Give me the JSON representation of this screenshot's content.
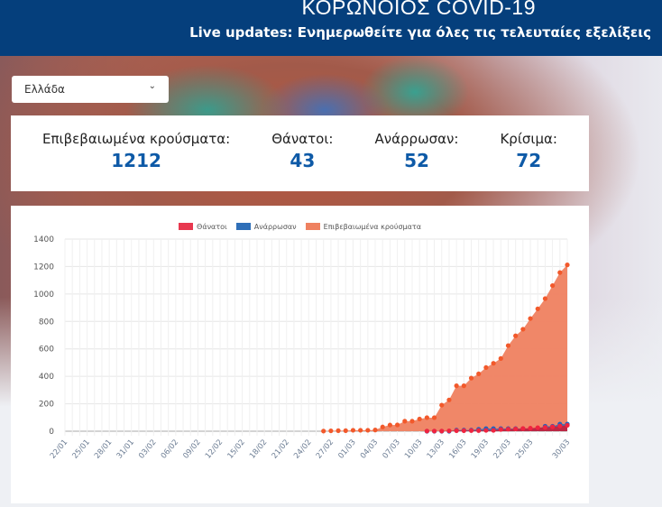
{
  "header": {
    "title": "ΚΟΡΩΝΟΙΟΣ COVID-19",
    "subtitle": "Live updates: Ενημερωθείτε για όλες τις τελευταίες εξελίξεις"
  },
  "country_select": {
    "value": "Ελλάδα"
  },
  "stats": [
    {
      "label": "Επιβεβαιωμένα κρούσματα:",
      "value": "1212"
    },
    {
      "label": "Θάνατοι:",
      "value": "43"
    },
    {
      "label": "Ανάρρωσαν:",
      "value": "52"
    },
    {
      "label": "Κρίσιμα:",
      "value": "72"
    }
  ],
  "colors": {
    "header": "#053f7c",
    "deaths": "#e8384f",
    "recovered": "#2f6fb8",
    "confirmed": "#ef8160"
  },
  "chart_data": {
    "type": "area",
    "legend": [
      "Θάνατοι",
      "Ανάρρωσαν",
      "Επιβεβαιωμένα κρούσματα"
    ],
    "ylim": [
      0,
      1400
    ],
    "yticks": [
      0,
      200,
      400,
      600,
      800,
      1000,
      1200,
      1400
    ],
    "xstart": "22/01",
    "days": 69,
    "xtick_labels": [
      "22/01",
      "25/01",
      "28/01",
      "31/01",
      "03/02",
      "06/02",
      "09/02",
      "12/02",
      "15/02",
      "18/02",
      "21/02",
      "24/02",
      "27/02",
      "01/03",
      "04/03",
      "07/03",
      "10/03",
      "13/03",
      "16/03",
      "19/03",
      "22/03",
      "25/03",
      "30/03"
    ],
    "xtick_days": [
      0,
      3,
      6,
      9,
      12,
      15,
      18,
      21,
      24,
      27,
      30,
      33,
      36,
      39,
      42,
      45,
      48,
      51,
      54,
      57,
      60,
      63,
      68
    ],
    "series": [
      {
        "name": "Επιβεβαιωμένα κρούσματα",
        "start_day": 35,
        "values": [
          1,
          3,
          4,
          4,
          7,
          7,
          7,
          9,
          31,
          45,
          46,
          73,
          73,
          89,
          99,
          99,
          190,
          228,
          331,
          331,
          387,
          418,
          464,
          495,
          530,
          624,
          695,
          743,
          821,
          892,
          966,
          1061,
          1156,
          1212
        ]
      },
      {
        "name": "Ανάρρωσαν",
        "start_day": 49,
        "values": [
          0,
          0,
          0,
          0,
          8,
          8,
          8,
          14,
          19,
          19,
          19,
          19,
          19,
          19,
          19,
          19,
          36,
          36,
          52,
          52
        ]
      },
      {
        "name": "Θάνατοι",
        "start_day": 49,
        "values": [
          1,
          1,
          1,
          3,
          4,
          4,
          5,
          5,
          6,
          6,
          13,
          15,
          17,
          20,
          22,
          26,
          28,
          32,
          38,
          43
        ]
      }
    ]
  }
}
